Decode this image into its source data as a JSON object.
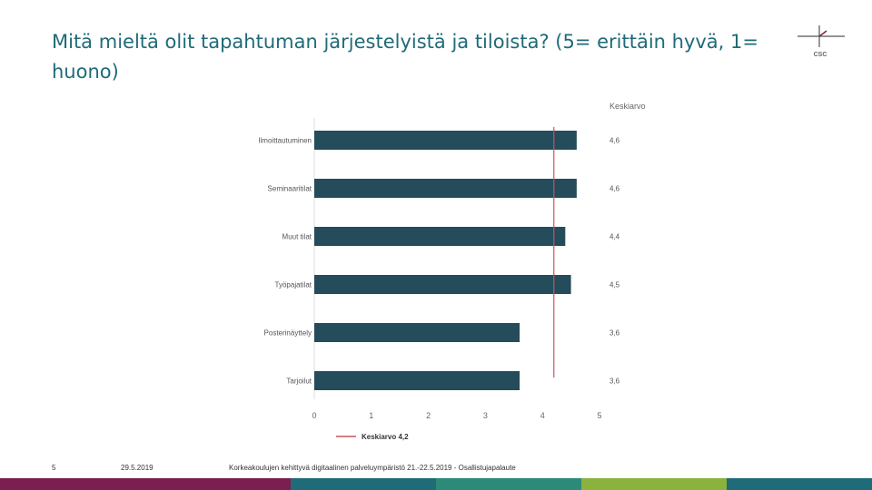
{
  "slide": {
    "title": "Mitä mieltä olit tapahtuman järjestelyistä ja tiloista? (5= erittäin hyvä, 1= huono)",
    "page_number": "5",
    "date": "29.5.2019",
    "footer": "Korkeakoulujen kehittyvä digitaalinen palveluympäristö 21.-22.5.2019 - Osallistujapalaute",
    "logo_text": "CSC"
  },
  "colors": {
    "title": "#1f6b78",
    "bar": "#244c5a",
    "average_line": "#c9545c",
    "stripes": [
      "#7a1f4f",
      "#7a1f4f",
      "#1f6b78",
      "#2e8a78",
      "#8ab23d",
      "#1f6b78"
    ]
  },
  "chart_data": {
    "type": "bar",
    "orientation": "horizontal",
    "categories": [
      "Ilmoittautuminen",
      "Seminaaritilat",
      "Muut tilat",
      "Työpajatilat",
      "Posterinäyttely",
      "Tarjoilut"
    ],
    "values": [
      4.6,
      4.6,
      4.4,
      4.5,
      3.6,
      3.6
    ],
    "value_labels": [
      "4,6",
      "4,6",
      "4,4",
      "4,5",
      "3,6",
      "3,6"
    ],
    "value_column_header": "Keskiarvo",
    "x_ticks": [
      "0",
      "1",
      "2",
      "3",
      "4",
      "5"
    ],
    "xlim": [
      0,
      5
    ],
    "average": 4.2,
    "legend": "Keskiarvo 4,2",
    "legend_position": "bottom",
    "grid": false
  }
}
